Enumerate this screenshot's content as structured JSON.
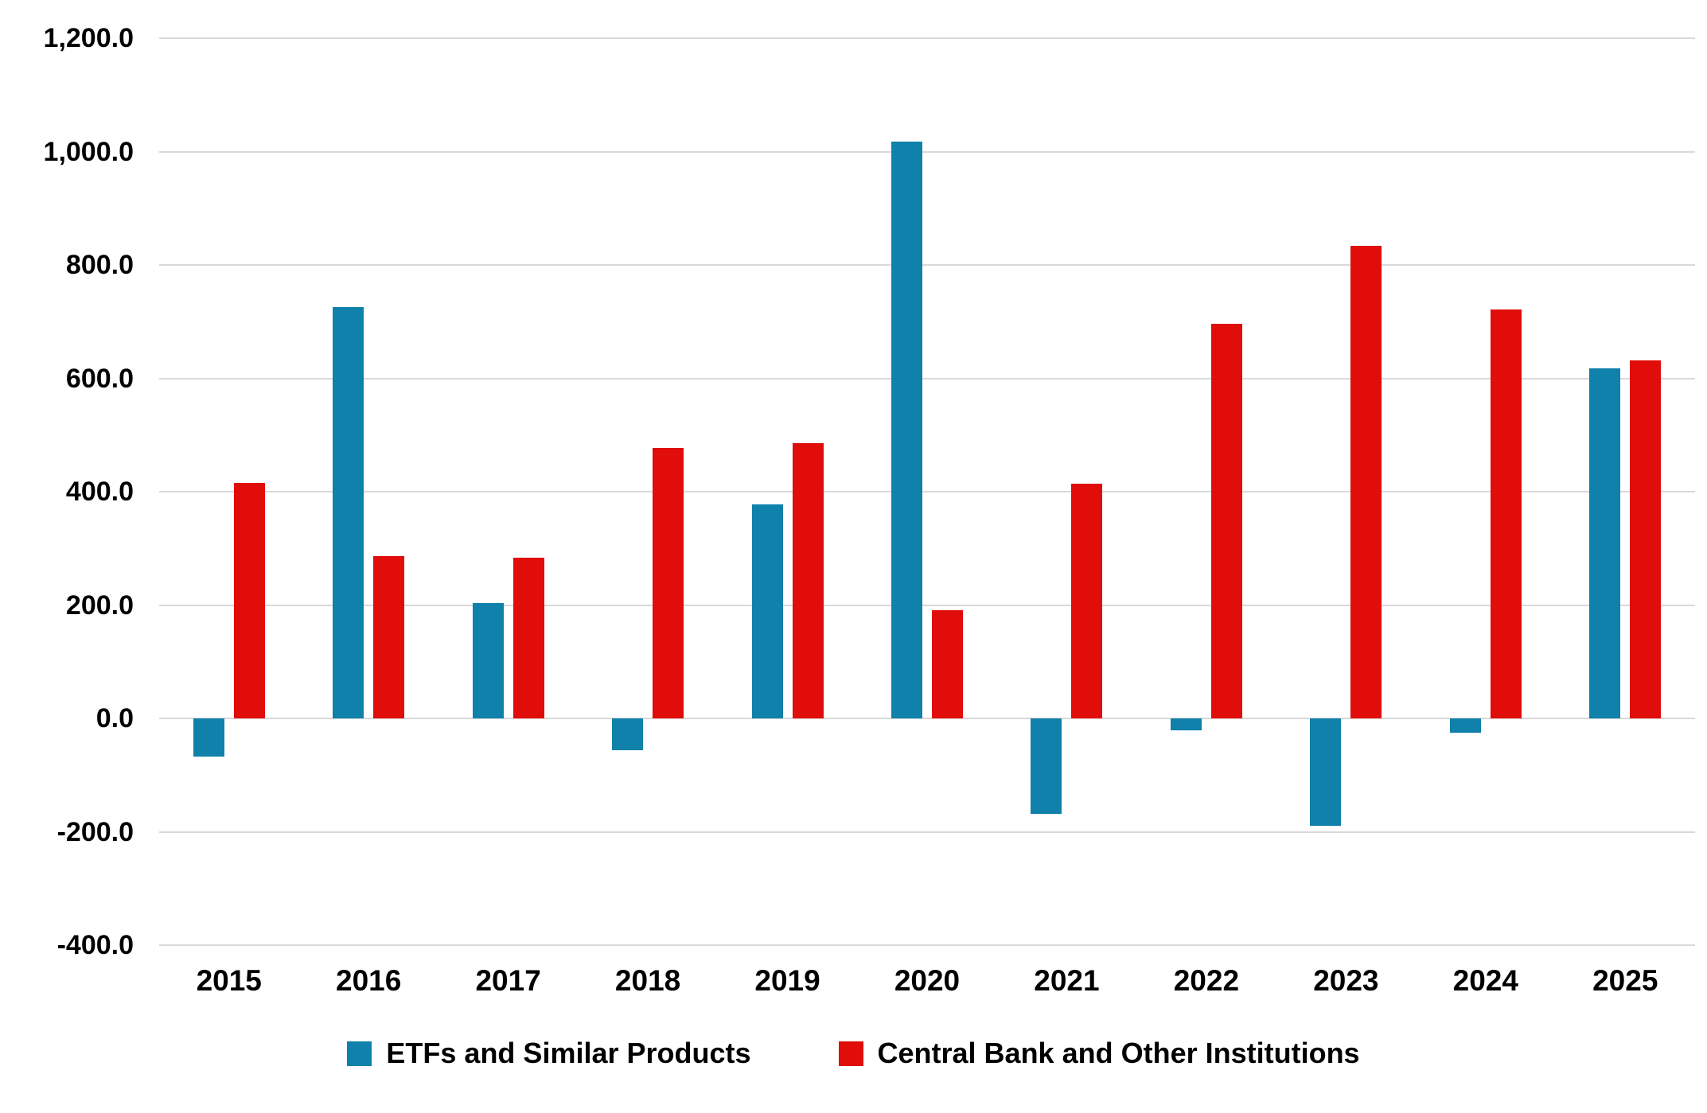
{
  "chart_data": {
    "type": "bar",
    "categories": [
      "2015",
      "2016",
      "2017",
      "2018",
      "2019",
      "2020",
      "2021",
      "2022",
      "2023",
      "2024",
      "2025"
    ],
    "series": [
      {
        "name": "ETFs and Similar Products",
        "color": "#0F81AA",
        "values": [
          -68,
          725,
          204,
          -56,
          377,
          1017,
          -168,
          -21,
          -189,
          -25,
          618
        ]
      },
      {
        "name": "Central Bank and Other Institutions",
        "color": "#E00D0A",
        "values": [
          415,
          286,
          284,
          477,
          486,
          191,
          414,
          696,
          833,
          722,
          631
        ]
      }
    ],
    "title": "",
    "xlabel": "",
    "ylabel": "",
    "ylim": [
      -400,
      1200
    ],
    "ytick_step": 200,
    "yticks": [
      1200,
      1000,
      800,
      600,
      400,
      200,
      0,
      -200,
      -400
    ],
    "ytick_labels": [
      "1,200.0",
      "1,000.0",
      "800.0",
      "600.0",
      "400.0",
      "200.0",
      "0.0",
      "-200.0",
      "-400.0"
    ],
    "grid": true,
    "gridline_color": "#d9d9d9",
    "background": "#ffffff",
    "legend_position": "bottom"
  }
}
